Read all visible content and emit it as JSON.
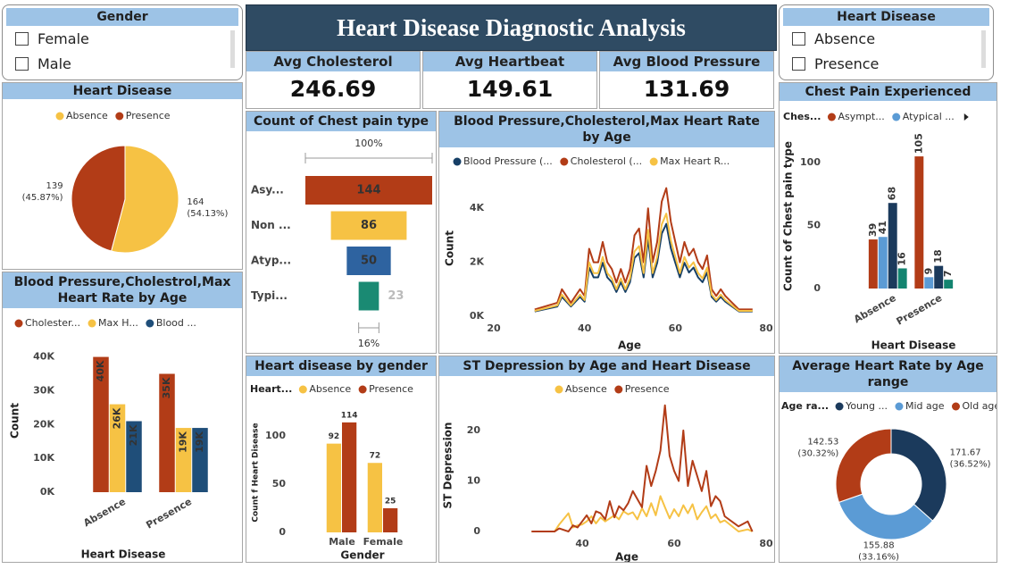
{
  "header": {
    "title": "Heart Disease Diagnostic Analysis"
  },
  "slicers": [
    {
      "title": "Gender",
      "options": [
        "Female",
        "Male"
      ]
    },
    {
      "title": "Heart Disease",
      "options": [
        "Absence",
        "Presence"
      ]
    }
  ],
  "cards": [
    {
      "label": "Avg Cholesterol",
      "value": 246.69
    },
    {
      "label": "Avg Heartbeat",
      "value": 149.61
    },
    {
      "label": "Avg Blood Pressure",
      "value": 131.69
    }
  ],
  "chart_data": [
    {
      "type": "pie",
      "title": "Heart Disease",
      "categories": [
        "Absence",
        "Presence"
      ],
      "values": [
        164,
        139
      ],
      "percent_labels": [
        "(54.13%)",
        "(45.87%)"
      ],
      "colors": [
        "#f6c244",
        "#b23c17"
      ]
    },
    {
      "type": "bar",
      "title": "Blood Pressure,Cholestrol,Max Heart Rate by Age",
      "categories": [
        "Absence",
        "Presence"
      ],
      "series": [
        {
          "name": "Cholester...",
          "color": "#b23c17",
          "values": [
            40000,
            35000
          ],
          "value_labels": [
            "40K",
            "35K"
          ]
        },
        {
          "name": "Max H...",
          "color": "#f6c244",
          "values": [
            26000,
            19000
          ],
          "value_labels": [
            "26K",
            "19K"
          ]
        },
        {
          "name": "Blood ...",
          "color": "#1f4e79",
          "values": [
            21000,
            19000
          ],
          "value_labels": [
            "21K",
            "19K"
          ]
        }
      ],
      "ylim": [
        0,
        42000
      ],
      "yticks": [
        {
          "value": 0,
          "label": "0K"
        },
        {
          "value": 10000,
          "label": "10K"
        },
        {
          "value": 20000,
          "label": "20K"
        },
        {
          "value": 30000,
          "label": "30K"
        },
        {
          "value": 40000,
          "label": "40K"
        }
      ],
      "xlabel": "Heart Disease",
      "ylabel": "Count"
    },
    {
      "type": "funnel",
      "title": "Count of Chest pain type",
      "categories": [
        "Asy...",
        "Non ...",
        "Atyp...",
        "Typi..."
      ],
      "values": [
        144,
        86,
        50,
        23
      ],
      "colors": [
        "#b23c17",
        "#f6c244",
        "#2e63a0",
        "#1a8a73"
      ],
      "top_label": "100%",
      "bottom_label": "16%"
    },
    {
      "type": "line",
      "title": "Blood Pressure,Cholesterol,Max Heart Rate by Age",
      "x": [
        29,
        34,
        35,
        37,
        38,
        39,
        40,
        41,
        42,
        43,
        44,
        45,
        46,
        47,
        48,
        49,
        50,
        51,
        52,
        53,
        54,
        55,
        56,
        57,
        58,
        59,
        60,
        61,
        62,
        63,
        64,
        65,
        66,
        67,
        68,
        69,
        70,
        71,
        74,
        76,
        77
      ],
      "series": [
        {
          "name": "Blood Pressure (...",
          "color": "#163f66",
          "values": [
            180,
            360,
            720,
            360,
            540,
            720,
            540,
            1800,
            1440,
            1440,
            1980,
            1440,
            1260,
            900,
            1260,
            900,
            1260,
            2160,
            2340,
            1440,
            2880,
            1440,
            1980,
            3060,
            3420,
            2520,
            1980,
            1440,
            1980,
            1620,
            1800,
            1440,
            1260,
            1620,
            720,
            540,
            720,
            540,
            180,
            180,
            180
          ]
        },
        {
          "name": "Cholesterol (...",
          "color": "#b23c17",
          "values": [
            250,
            500,
            1000,
            500,
            750,
            1000,
            750,
            2500,
            2000,
            2000,
            2750,
            2000,
            1750,
            1250,
            1750,
            1250,
            1750,
            3000,
            3250,
            2000,
            4000,
            2000,
            2750,
            4250,
            4750,
            3500,
            2750,
            2000,
            2750,
            2250,
            2500,
            2000,
            1750,
            2250,
            1000,
            750,
            1000,
            750,
            250,
            250,
            250
          ]
        },
        {
          "name": "Max Heart R...",
          "color": "#f6c244",
          "values": [
            200,
            400,
            800,
            400,
            600,
            800,
            600,
            2000,
            1600,
            1600,
            2200,
            1600,
            1400,
            1000,
            1400,
            1000,
            1400,
            2400,
            2600,
            1600,
            3200,
            1600,
            2200,
            3400,
            3800,
            2800,
            2200,
            1600,
            2200,
            1800,
            2000,
            1600,
            1400,
            1800,
            800,
            600,
            800,
            600,
            200,
            200,
            200
          ]
        }
      ],
      "xlim": [
        20,
        80
      ],
      "xticks": [
        20,
        40,
        60,
        80
      ],
      "ylim": [
        0,
        5000
      ],
      "yticks": [
        {
          "value": 0,
          "label": "0K"
        },
        {
          "value": 2000,
          "label": "2K"
        },
        {
          "value": 4000,
          "label": "4K"
        }
      ],
      "xlabel": "Age",
      "ylabel": "Count"
    },
    {
      "type": "bar",
      "title": "Chest Pain Experienced",
      "legend_title": "Ches...",
      "categories": [
        "Absence",
        "Presence"
      ],
      "series": [
        {
          "name": "Asympt...",
          "color": "#b23c17",
          "values": [
            39,
            105
          ]
        },
        {
          "name": "Atypical ...",
          "color": "#5b9bd5",
          "values": [
            41,
            9
          ]
        },
        {
          "color": "#1b3a5c",
          "values": [
            68,
            18
          ]
        },
        {
          "color": "#138470",
          "values": [
            16,
            7
          ]
        }
      ],
      "ylim": [
        0,
        115
      ],
      "yticks": [
        0,
        50,
        100
      ],
      "xlabel": "Heart Disease",
      "ylabel": "Count of Chest pain type"
    },
    {
      "type": "bar",
      "title": "Heart disease by gender",
      "legend_title": "Heart...",
      "categories": [
        "Male",
        "Female"
      ],
      "series": [
        {
          "name": "Absence",
          "color": "#f6c244",
          "values": [
            92,
            72
          ]
        },
        {
          "name": "Presence",
          "color": "#b23c17",
          "values": [
            114,
            25
          ]
        }
      ],
      "ylim": [
        0,
        125
      ],
      "yticks": [
        0,
        50,
        100
      ],
      "xlabel": "Gender",
      "ylabel": "Count f Heart Disease"
    },
    {
      "type": "line",
      "title": "ST Depression by Age and Heart Disease",
      "x": [
        29,
        34,
        35,
        37,
        38,
        39,
        40,
        41,
        42,
        43,
        44,
        45,
        46,
        47,
        48,
        49,
        50,
        51,
        52,
        53,
        54,
        55,
        56,
        57,
        58,
        59,
        60,
        61,
        62,
        63,
        64,
        65,
        66,
        67,
        68,
        69,
        70,
        71,
        74,
        76,
        77
      ],
      "series": [
        {
          "name": "Absence",
          "color": "#f6c244",
          "values": [
            0,
            0,
            1.4,
            3.6,
            0.8,
            1.2,
            1.4,
            2,
            3,
            1.6,
            2.8,
            2,
            2.6,
            3.2,
            2.4,
            4,
            3.4,
            3.8,
            2.4,
            4.6,
            3,
            5.6,
            3.2,
            7,
            4.8,
            2.6,
            4.4,
            3,
            5.2,
            3.6,
            5.4,
            2.4,
            3.8,
            5,
            2.6,
            3.4,
            1.8,
            2.2,
            0,
            0.4,
            0
          ]
        },
        {
          "name": "Presence",
          "color": "#b23c17",
          "values": [
            0,
            0,
            0.6,
            0,
            1.2,
            0.8,
            2,
            3.2,
            1.6,
            4,
            3.6,
            2.4,
            6,
            2.8,
            5,
            4.2,
            5.6,
            8,
            6.4,
            4.8,
            13,
            9,
            12,
            16,
            25,
            15,
            12,
            10,
            20,
            9,
            14,
            11,
            8,
            12,
            5,
            7,
            6,
            3,
            1,
            2,
            0
          ]
        }
      ],
      "xlim": [
        20,
        80
      ],
      "xticks": [
        40,
        60,
        80
      ],
      "ylim": [
        0,
        26
      ],
      "yticks": [
        0,
        10,
        20
      ],
      "xlabel": "Age",
      "ylabel": "ST Depression"
    },
    {
      "type": "donut",
      "title": "Average Heart Rate by Age range",
      "legend_title": "Age ra...",
      "categories": [
        "Young ...",
        "Mid age",
        "Old age"
      ],
      "values": [
        171.67,
        155.88,
        142.53
      ],
      "percent_labels": [
        "(36.52%)",
        "(33.16%)",
        "(30.32%)"
      ],
      "colors": [
        "#1b3a5c",
        "#5b9bd5",
        "#b23c17"
      ]
    }
  ]
}
